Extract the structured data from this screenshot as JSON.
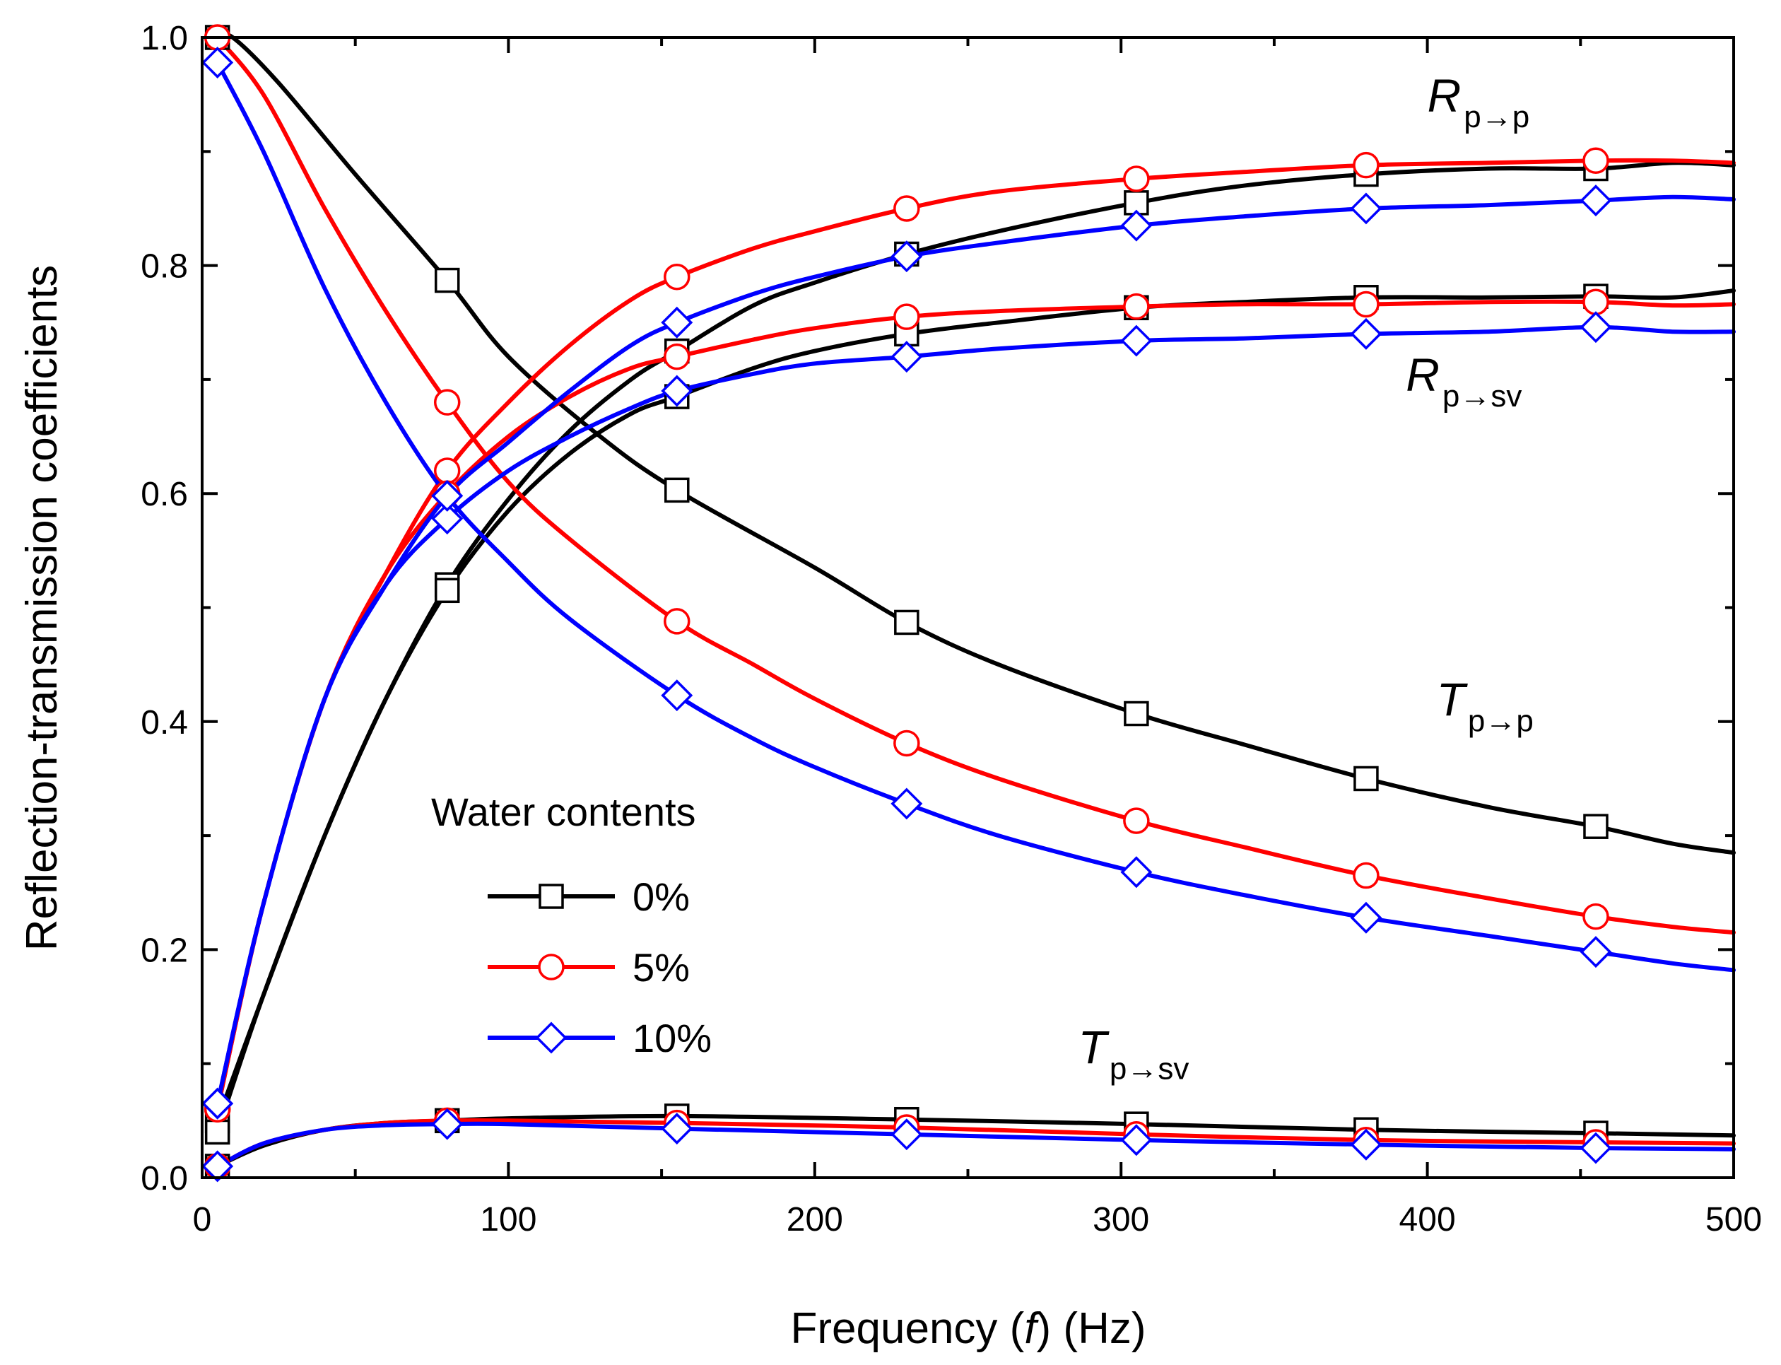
{
  "chart_data": {
    "type": "line",
    "xlabel_parts": [
      "Frequency (",
      "f",
      ") (Hz)"
    ],
    "ylabel": "Reflection-transmission coefficients",
    "xlim": [
      0,
      500
    ],
    "ylim": [
      0,
      1.0
    ],
    "xticks": [
      0,
      100,
      200,
      300,
      400,
      500
    ],
    "yticks": [
      0.0,
      0.2,
      0.4,
      0.6,
      0.8,
      1.0
    ],
    "xtick_labels": [
      "0",
      "100",
      "200",
      "300",
      "400",
      "500"
    ],
    "ytick_labels": [
      "0.0",
      "0.2",
      "0.4",
      "0.6",
      "0.8",
      "1.0"
    ],
    "grid": false,
    "legend": {
      "title": "Water contents",
      "position": "lower-left-center",
      "entries": [
        {
          "label": "0%",
          "color": "#000000",
          "marker": "square"
        },
        {
          "label": "5%",
          "color": "#ff0000",
          "marker": "circle"
        },
        {
          "label": "10%",
          "color": "#0000ff",
          "marker": "diamond"
        }
      ]
    },
    "curve_labels": [
      {
        "main": "R",
        "sub": "p→p",
        "anchor_x": 400,
        "anchor_y": 0.935
      },
      {
        "main": "R",
        "sub": "p→sv",
        "anchor_x": 393,
        "anchor_y": 0.69
      },
      {
        "main": "T",
        "sub": "p→p",
        "anchor_x": 403,
        "anchor_y": 0.405
      },
      {
        "main": "T",
        "sub": "p→sv",
        "anchor_x": 286,
        "anchor_y": 0.1
      }
    ],
    "marker_x": [
      5,
      80,
      155,
      230,
      305,
      380,
      455
    ],
    "series": [
      {
        "name": "R p→p",
        "group": "0%",
        "color": "#000000",
        "marker": "square",
        "x": [
          5,
          20,
          40,
          60,
          80,
          100,
          120,
          140,
          155,
          180,
          200,
          230,
          260,
          305,
          340,
          380,
          420,
          455,
          480,
          500
        ],
        "y": [
          0.05,
          0.16,
          0.3,
          0.42,
          0.52,
          0.595,
          0.655,
          0.7,
          0.725,
          0.765,
          0.785,
          0.81,
          0.83,
          0.855,
          0.87,
          0.88,
          0.885,
          0.885,
          0.89,
          0.888
        ]
      },
      {
        "name": "R p→sv",
        "group": "0%",
        "color": "#000000",
        "marker": "square",
        "x": [
          5,
          20,
          40,
          60,
          80,
          100,
          120,
          140,
          155,
          180,
          200,
          230,
          260,
          305,
          340,
          380,
          420,
          455,
          480,
          500
        ],
        "y": [
          0.04,
          0.16,
          0.3,
          0.42,
          0.515,
          0.585,
          0.635,
          0.67,
          0.685,
          0.71,
          0.725,
          0.74,
          0.75,
          0.763,
          0.768,
          0.772,
          0.772,
          0.773,
          0.772,
          0.778
        ]
      },
      {
        "name": "T p→p",
        "group": "0%",
        "color": "#000000",
        "marker": "square",
        "x": [
          5,
          10,
          25,
          50,
          80,
          100,
          130,
          155,
          200,
          230,
          260,
          305,
          340,
          380,
          420,
          455,
          480,
          500
        ],
        "y": [
          1.0,
          1.0,
          0.96,
          0.88,
          0.787,
          0.72,
          0.65,
          0.603,
          0.535,
          0.487,
          0.45,
          0.407,
          0.38,
          0.35,
          0.325,
          0.308,
          0.293,
          0.285
        ]
      },
      {
        "name": "T p→sv",
        "group": "0%",
        "color": "#000000",
        "marker": "square",
        "x": [
          5,
          20,
          40,
          60,
          80,
          100,
          155,
          230,
          305,
          380,
          455,
          500
        ],
        "y": [
          0.01,
          0.028,
          0.042,
          0.048,
          0.05,
          0.052,
          0.054,
          0.051,
          0.047,
          0.042,
          0.039,
          0.037
        ]
      },
      {
        "name": "R p→p",
        "group": "5%",
        "color": "#ff0000",
        "marker": "circle",
        "x": [
          5,
          20,
          40,
          60,
          80,
          100,
          120,
          140,
          155,
          180,
          200,
          230,
          260,
          305,
          340,
          380,
          420,
          455,
          480,
          500
        ],
        "y": [
          0.06,
          0.24,
          0.42,
          0.53,
          0.62,
          0.68,
          0.73,
          0.77,
          0.79,
          0.815,
          0.83,
          0.85,
          0.865,
          0.876,
          0.882,
          0.888,
          0.89,
          0.892,
          0.892,
          0.89
        ]
      },
      {
        "name": "R p→sv",
        "group": "5%",
        "color": "#ff0000",
        "marker": "circle",
        "x": [
          5,
          20,
          40,
          60,
          80,
          100,
          120,
          140,
          155,
          180,
          200,
          230,
          260,
          305,
          340,
          380,
          420,
          455,
          480,
          500
        ],
        "y": [
          0.06,
          0.24,
          0.42,
          0.53,
          0.6,
          0.65,
          0.685,
          0.71,
          0.72,
          0.735,
          0.745,
          0.755,
          0.76,
          0.764,
          0.766,
          0.766,
          0.768,
          0.768,
          0.765,
          0.766
        ]
      },
      {
        "name": "T p→p",
        "group": "5%",
        "color": "#ff0000",
        "marker": "circle",
        "x": [
          5,
          20,
          40,
          60,
          80,
          100,
          120,
          155,
          180,
          200,
          230,
          260,
          305,
          340,
          380,
          420,
          455,
          480,
          500
        ],
        "y": [
          1.0,
          0.95,
          0.85,
          0.76,
          0.68,
          0.61,
          0.56,
          0.488,
          0.45,
          0.42,
          0.381,
          0.35,
          0.313,
          0.29,
          0.265,
          0.245,
          0.229,
          0.22,
          0.215
        ]
      },
      {
        "name": "T p→sv",
        "group": "5%",
        "color": "#ff0000",
        "marker": "circle",
        "x": [
          5,
          20,
          40,
          60,
          80,
          100,
          155,
          230,
          305,
          380,
          455,
          500
        ],
        "y": [
          0.01,
          0.03,
          0.042,
          0.048,
          0.05,
          0.05,
          0.048,
          0.044,
          0.038,
          0.033,
          0.031,
          0.03
        ]
      },
      {
        "name": "R p→p",
        "group": "10%",
        "color": "#0000ff",
        "marker": "diamond",
        "x": [
          5,
          20,
          40,
          60,
          80,
          100,
          120,
          140,
          155,
          180,
          200,
          230,
          260,
          305,
          340,
          380,
          420,
          455,
          480,
          500
        ],
        "y": [
          0.065,
          0.24,
          0.42,
          0.52,
          0.598,
          0.645,
          0.69,
          0.73,
          0.75,
          0.775,
          0.79,
          0.808,
          0.82,
          0.835,
          0.843,
          0.85,
          0.853,
          0.857,
          0.86,
          0.858
        ]
      },
      {
        "name": "R p→sv",
        "group": "10%",
        "color": "#0000ff",
        "marker": "diamond",
        "x": [
          5,
          20,
          40,
          60,
          80,
          100,
          120,
          140,
          155,
          180,
          200,
          230,
          260,
          305,
          340,
          380,
          420,
          455,
          480,
          500
        ],
        "y": [
          0.065,
          0.24,
          0.42,
          0.52,
          0.578,
          0.62,
          0.65,
          0.675,
          0.69,
          0.705,
          0.714,
          0.72,
          0.727,
          0.734,
          0.736,
          0.74,
          0.742,
          0.746,
          0.742,
          0.742
        ]
      },
      {
        "name": "T p→p",
        "group": "10%",
        "color": "#0000ff",
        "marker": "diamond",
        "x": [
          5,
          20,
          40,
          60,
          80,
          100,
          120,
          155,
          180,
          200,
          230,
          260,
          305,
          340,
          380,
          420,
          455,
          480,
          500
        ],
        "y": [
          0.978,
          0.9,
          0.78,
          0.68,
          0.598,
          0.54,
          0.49,
          0.423,
          0.385,
          0.36,
          0.328,
          0.3,
          0.268,
          0.248,
          0.228,
          0.212,
          0.198,
          0.188,
          0.182
        ]
      },
      {
        "name": "T p→sv",
        "group": "10%",
        "color": "#0000ff",
        "marker": "diamond",
        "x": [
          5,
          20,
          40,
          60,
          80,
          100,
          155,
          230,
          305,
          380,
          455,
          500
        ],
        "y": [
          0.01,
          0.03,
          0.042,
          0.046,
          0.047,
          0.047,
          0.043,
          0.038,
          0.033,
          0.029,
          0.026,
          0.025
        ]
      }
    ]
  }
}
